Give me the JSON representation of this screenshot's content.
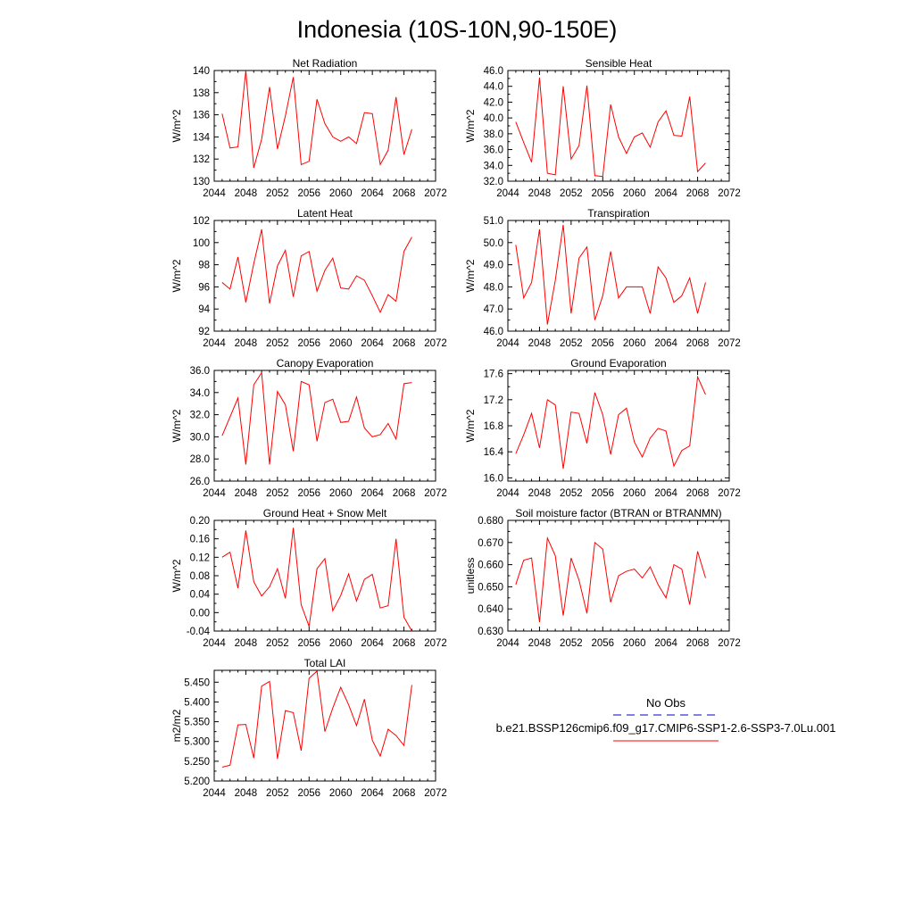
{
  "page": {
    "title": "Indonesia (10S-10N,90-150E)"
  },
  "legend": {
    "obs_label": "No Obs",
    "obs_color": "#0000cc",
    "case_label": "b.e21.BSSP126cmip6.f09_g17.CMIP6-SSP1-2.6-SSP3-7.0Lu.001",
    "case_color": "#ff0000"
  },
  "chart_data": [
    {
      "type": "line",
      "title": "Net Radiation",
      "ylabel": "W/m^2",
      "xlim": [
        2044,
        2072
      ],
      "xticks": [
        "2044",
        "2048",
        "2052",
        "2056",
        "2060",
        "2064",
        "2068",
        "2072"
      ],
      "ylim": [
        130,
        140
      ],
      "yticks": [
        "130",
        "132",
        "134",
        "136",
        "138",
        "140"
      ],
      "x": [
        2045,
        2046,
        2047,
        2048,
        2049,
        2050,
        2051,
        2052,
        2053,
        2054,
        2055,
        2056,
        2057,
        2058,
        2059,
        2060,
        2061,
        2062,
        2063,
        2064,
        2065,
        2066,
        2067,
        2068,
        2069
      ],
      "series": [
        {
          "color": "#ff0000",
          "values": [
            136.1,
            133.0,
            133.1,
            140.1,
            131.2,
            133.8,
            138.5,
            132.9,
            135.9,
            139.4,
            131.5,
            131.8,
            137.4,
            135.2,
            134.0,
            133.6,
            134.0,
            133.4,
            136.2,
            136.1,
            131.5,
            132.8,
            137.6,
            132.4,
            134.7
          ]
        }
      ]
    },
    {
      "type": "line",
      "title": "Sensible Heat",
      "ylabel": "W/m^2",
      "xlim": [
        2044,
        2072
      ],
      "xticks": [
        "2044",
        "2048",
        "2052",
        "2056",
        "2060",
        "2064",
        "2068",
        "2072"
      ],
      "ylim": [
        32,
        46
      ],
      "yticks": [
        "32.0",
        "34.0",
        "36.0",
        "38.0",
        "40.0",
        "42.0",
        "44.0",
        "46.0"
      ],
      "x": [
        2045,
        2046,
        2047,
        2048,
        2049,
        2050,
        2051,
        2052,
        2053,
        2054,
        2055,
        2056,
        2057,
        2058,
        2059,
        2060,
        2061,
        2062,
        2063,
        2064,
        2065,
        2066,
        2067,
        2068,
        2069
      ],
      "series": [
        {
          "color": "#ff0000",
          "values": [
            39.5,
            36.9,
            34.4,
            45.1,
            33.0,
            32.8,
            44.0,
            34.8,
            36.5,
            44.1,
            32.7,
            32.6,
            41.7,
            37.6,
            35.5,
            37.6,
            38.1,
            36.3,
            39.5,
            40.9,
            37.8,
            37.7,
            42.7,
            33.2,
            34.3
          ]
        }
      ]
    },
    {
      "type": "line",
      "title": "Latent Heat",
      "ylabel": "W/m^2",
      "xlim": [
        2044,
        2072
      ],
      "xticks": [
        "2044",
        "2048",
        "2052",
        "2056",
        "2060",
        "2064",
        "2068",
        "2072"
      ],
      "ylim": [
        92,
        102
      ],
      "yticks": [
        "92",
        "94",
        "96",
        "98",
        "100",
        "102"
      ],
      "x": [
        2045,
        2046,
        2047,
        2048,
        2049,
        2050,
        2051,
        2052,
        2053,
        2054,
        2055,
        2056,
        2057,
        2058,
        2059,
        2060,
        2061,
        2062,
        2063,
        2064,
        2065,
        2066,
        2067,
        2068,
        2069
      ],
      "series": [
        {
          "color": "#ff0000",
          "values": [
            96.4,
            95.8,
            98.7,
            94.6,
            98.1,
            101.2,
            94.5,
            97.9,
            99.3,
            95.1,
            98.8,
            99.2,
            95.6,
            97.5,
            98.6,
            95.9,
            95.8,
            97.0,
            96.6,
            95.2,
            93.7,
            95.3,
            94.7,
            99.2,
            100.5
          ]
        }
      ]
    },
    {
      "type": "line",
      "title": "Transpiration",
      "ylabel": "W/m^2",
      "xlim": [
        2044,
        2072
      ],
      "xticks": [
        "2044",
        "2048",
        "2052",
        "2056",
        "2060",
        "2064",
        "2068",
        "2072"
      ],
      "ylim": [
        46,
        51
      ],
      "yticks": [
        "46.0",
        "47.0",
        "48.0",
        "49.0",
        "50.0",
        "51.0"
      ],
      "x": [
        2045,
        2046,
        2047,
        2048,
        2049,
        2050,
        2051,
        2052,
        2053,
        2054,
        2055,
        2056,
        2057,
        2058,
        2059,
        2060,
        2061,
        2062,
        2063,
        2064,
        2065,
        2066,
        2067,
        2068,
        2069
      ],
      "series": [
        {
          "color": "#ff0000",
          "values": [
            49.9,
            47.5,
            48.2,
            50.6,
            46.3,
            48.3,
            50.8,
            46.8,
            49.3,
            49.8,
            46.5,
            47.6,
            49.6,
            47.5,
            48.0,
            48.0,
            48.0,
            46.8,
            48.9,
            48.4,
            47.3,
            47.6,
            48.4,
            46.8,
            48.2
          ]
        }
      ]
    },
    {
      "type": "line",
      "title": "Canopy Evaporation",
      "ylabel": "W/m^2",
      "xlim": [
        2044,
        2072
      ],
      "xticks": [
        "2044",
        "2048",
        "2052",
        "2056",
        "2060",
        "2064",
        "2068",
        "2072"
      ],
      "ylim": [
        26,
        36
      ],
      "yticks": [
        "26.0",
        "28.0",
        "30.0",
        "32.0",
        "34.0",
        "36.0"
      ],
      "x": [
        2045,
        2046,
        2047,
        2048,
        2049,
        2050,
        2051,
        2052,
        2053,
        2054,
        2055,
        2056,
        2057,
        2058,
        2059,
        2060,
        2061,
        2062,
        2063,
        2064,
        2065,
        2066,
        2067,
        2068,
        2069
      ],
      "series": [
        {
          "color": "#ff0000",
          "values": [
            30.1,
            31.8,
            33.5,
            27.5,
            34.7,
            35.8,
            27.5,
            34.1,
            32.9,
            28.7,
            35.0,
            34.7,
            29.6,
            33.1,
            33.4,
            31.3,
            31.4,
            33.6,
            30.8,
            30.0,
            30.2,
            31.2,
            29.8,
            34.8,
            34.9
          ]
        }
      ]
    },
    {
      "type": "line",
      "title": "Ground Evaporation",
      "ylabel": "W/m^2",
      "xlim": [
        2044,
        2072
      ],
      "xticks": [
        "2044",
        "2048",
        "2052",
        "2056",
        "2060",
        "2064",
        "2068",
        "2072"
      ],
      "ylim": [
        15.95,
        17.65
      ],
      "yticks": [
        "16.0",
        "16.4",
        "16.8",
        "17.2",
        "17.6"
      ],
      "ytick_values": [
        16.0,
        16.4,
        16.8,
        17.2,
        17.6
      ],
      "x": [
        2045,
        2046,
        2047,
        2048,
        2049,
        2050,
        2051,
        2052,
        2053,
        2054,
        2055,
        2056,
        2057,
        2058,
        2059,
        2060,
        2061,
        2062,
        2063,
        2064,
        2065,
        2066,
        2067,
        2068,
        2069
      ],
      "series": [
        {
          "color": "#ff0000",
          "values": [
            16.37,
            16.66,
            16.99,
            16.46,
            17.2,
            17.12,
            16.14,
            17.01,
            16.99,
            16.53,
            17.31,
            16.97,
            16.36,
            16.97,
            17.07,
            16.55,
            16.32,
            16.61,
            16.76,
            16.72,
            16.18,
            16.42,
            16.49,
            17.55,
            17.28
          ]
        }
      ]
    },
    {
      "type": "line",
      "title": "Ground Heat + Snow Melt",
      "ylabel": "W/m^2",
      "xlim": [
        2044,
        2072
      ],
      "xticks": [
        "2044",
        "2048",
        "2052",
        "2056",
        "2060",
        "2064",
        "2068",
        "2072"
      ],
      "ylim": [
        -0.04,
        0.2
      ],
      "yticks": [
        "-0.04",
        "0.00",
        "0.04",
        "0.08",
        "0.12",
        "0.16",
        "0.20"
      ],
      "x": [
        2045,
        2046,
        2047,
        2048,
        2049,
        2050,
        2051,
        2052,
        2053,
        2054,
        2055,
        2056,
        2057,
        2058,
        2059,
        2060,
        2061,
        2062,
        2063,
        2064,
        2065,
        2066,
        2067,
        2068,
        2069
      ],
      "series": [
        {
          "color": "#ff0000",
          "values": [
            0.12,
            0.131,
            0.053,
            0.178,
            0.067,
            0.036,
            0.056,
            0.095,
            0.031,
            0.184,
            0.017,
            -0.03,
            0.095,
            0.117,
            0.004,
            0.037,
            0.084,
            0.025,
            0.072,
            0.083,
            0.01,
            0.015,
            0.16,
            -0.01,
            -0.04
          ]
        }
      ]
    },
    {
      "type": "line",
      "title": "Soil moisture factor (BTRAN or BTRANMN)",
      "ylabel": "unitless",
      "xlim": [
        2044,
        2072
      ],
      "xticks": [
        "2044",
        "2048",
        "2052",
        "2056",
        "2060",
        "2064",
        "2068",
        "2072"
      ],
      "ylim": [
        0.63,
        0.68
      ],
      "yticks": [
        "0.630",
        "0.640",
        "0.650",
        "0.660",
        "0.670",
        "0.680"
      ],
      "x": [
        2045,
        2046,
        2047,
        2048,
        2049,
        2050,
        2051,
        2052,
        2053,
        2054,
        2055,
        2056,
        2057,
        2058,
        2059,
        2060,
        2061,
        2062,
        2063,
        2064,
        2065,
        2066,
        2067,
        2068,
        2069
      ],
      "series": [
        {
          "color": "#ff0000",
          "values": [
            0.651,
            0.662,
            0.663,
            0.634,
            0.672,
            0.664,
            0.637,
            0.663,
            0.653,
            0.638,
            0.67,
            0.667,
            0.643,
            0.655,
            0.657,
            0.658,
            0.654,
            0.659,
            0.651,
            0.645,
            0.66,
            0.658,
            0.642,
            0.666,
            0.654
          ]
        }
      ]
    },
    {
      "type": "line",
      "title": "Total LAI",
      "ylabel": "m2/m2",
      "xlim": [
        2044,
        2072
      ],
      "xticks": [
        "2044",
        "2048",
        "2052",
        "2056",
        "2060",
        "2064",
        "2068",
        "2072"
      ],
      "ylim": [
        5.2,
        5.48
      ],
      "yticks": [
        "5.200",
        "5.250",
        "5.300",
        "5.350",
        "5.400",
        "5.450"
      ],
      "ytick_values": [
        5.2,
        5.25,
        5.3,
        5.35,
        5.4,
        5.45
      ],
      "x": [
        2045,
        2046,
        2047,
        2048,
        2049,
        2050,
        2051,
        2052,
        2053,
        2054,
        2055,
        2056,
        2057,
        2058,
        2059,
        2060,
        2061,
        2062,
        2063,
        2064,
        2065,
        2066,
        2067,
        2068,
        2069
      ],
      "series": [
        {
          "color": "#ff0000",
          "values": [
            5.235,
            5.24,
            5.342,
            5.343,
            5.258,
            5.44,
            5.452,
            5.256,
            5.378,
            5.373,
            5.277,
            5.46,
            5.478,
            5.325,
            5.385,
            5.437,
            5.393,
            5.34,
            5.407,
            5.303,
            5.263,
            5.331,
            5.315,
            5.29,
            5.443
          ]
        }
      ]
    }
  ]
}
